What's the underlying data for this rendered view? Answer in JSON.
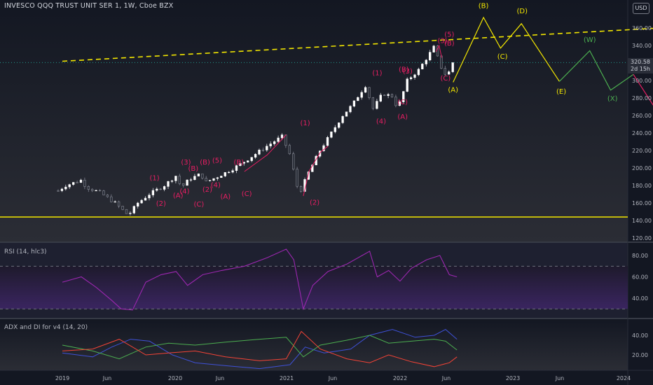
{
  "header": {
    "title": "INVESCO QQQ TRUST UNIT SER 1, 1W, Cboe BZX",
    "currency": "USD"
  },
  "price_tag": {
    "price": "320.58",
    "countdown": "2d 15h"
  },
  "panels": {
    "rsi_title": "RSI (14, hlc3)",
    "adx_title": "ADX and DI for v4 (14, 20)"
  },
  "colors": {
    "background": "#131722",
    "wave_magenta": "#e91e63",
    "wave_yellow": "#f2e600",
    "wave_green": "#4caf50",
    "rsi_line": "#9c27b0",
    "adx_blue": "#3f51d8",
    "adx_green": "#4caf50",
    "adx_red": "#f44336"
  },
  "chart_data": [
    {
      "type": "line",
      "panel": "price",
      "y_axis_ticks": [
        "360.00",
        "340.00",
        "320.00",
        "300.00",
        "280.00",
        "260.00",
        "240.00",
        "220.00",
        "200.00",
        "180.00",
        "160.00",
        "140.00",
        "120.00"
      ],
      "ylim": [
        120,
        370
      ],
      "x_axis_ticks": [
        "2019",
        "Jun",
        "2020",
        "Jun",
        "2021",
        "Jun",
        "2022",
        "Jun",
        "2023",
        "Jun",
        "2024"
      ],
      "price_history": [
        {
          "t": 0,
          "p": 174
        },
        {
          "t": 0.2,
          "p": 180
        },
        {
          "t": 0.6,
          "p": 186
        },
        {
          "t": 0.75,
          "p": 178
        },
        {
          "t": 1.1,
          "p": 172
        },
        {
          "t": 1.5,
          "p": 160
        },
        {
          "t": 1.85,
          "p": 146
        },
        {
          "t": 2.1,
          "p": 160
        },
        {
          "t": 2.4,
          "p": 170
        },
        {
          "t": 2.8,
          "p": 180
        },
        {
          "t": 3.1,
          "p": 191
        },
        {
          "t": 3.25,
          "p": 178
        },
        {
          "t": 3.45,
          "p": 187
        },
        {
          "t": 3.75,
          "p": 193
        },
        {
          "t": 3.9,
          "p": 184
        },
        {
          "t": 4.2,
          "p": 190
        },
        {
          "t": 4.6,
          "p": 199
        },
        {
          "t": 5.0,
          "p": 210
        },
        {
          "t": 5.5,
          "p": 225
        },
        {
          "t": 5.9,
          "p": 236
        },
        {
          "t": 6.1,
          "p": 216
        },
        {
          "t": 6.35,
          "p": 170
        },
        {
          "t": 6.6,
          "p": 195
        },
        {
          "t": 6.9,
          "p": 220
        },
        {
          "t": 7.2,
          "p": 240
        },
        {
          "t": 7.5,
          "p": 260
        },
        {
          "t": 7.75,
          "p": 272
        },
        {
          "t": 7.95,
          "p": 285
        },
        {
          "t": 8.1,
          "p": 294
        },
        {
          "t": 8.3,
          "p": 268
        },
        {
          "t": 8.55,
          "p": 285
        },
        {
          "t": 8.8,
          "p": 282
        },
        {
          "t": 8.95,
          "p": 268
        },
        {
          "t": 9.2,
          "p": 300
        },
        {
          "t": 9.5,
          "p": 312
        },
        {
          "t": 9.75,
          "p": 328
        },
        {
          "t": 9.9,
          "p": 338
        },
        {
          "t": 10.1,
          "p": 315
        },
        {
          "t": 10.25,
          "p": 304
        },
        {
          "t": 10.4,
          "p": 320.58
        }
      ],
      "projection_yellow": [
        {
          "t": 10.3,
          "p": 298
        },
        {
          "t": 11.1,
          "p": 372
        },
        {
          "t": 11.55,
          "p": 337
        },
        {
          "t": 12.1,
          "p": 365
        },
        {
          "t": 13.1,
          "p": 299
        }
      ],
      "projection_green": [
        {
          "t": 13.1,
          "p": 299
        },
        {
          "t": 13.9,
          "p": 334
        },
        {
          "t": 14.45,
          "p": 289
        },
        {
          "t": 15.05,
          "p": 307
        }
      ],
      "projection_magenta": [
        {
          "t": 15.05,
          "p": 307
        },
        {
          "t": 16.55,
          "p": 206
        },
        {
          "t": 17.5,
          "p": 252
        },
        {
          "t": 18.45,
          "p": 145
        },
        {
          "t": 19.25,
          "p": 195
        },
        {
          "t": 20.1,
          "p": 149
        }
      ],
      "trendline_yellow_dashed": [
        {
          "t": 0,
          "p": 322
        },
        {
          "t": 17.4,
          "p": 364
        }
      ],
      "support_line": {
        "p": 144
      },
      "annotations": [
        {
          "text": "(B)",
          "t": 11.1,
          "p": 383,
          "color": "yellow"
        },
        {
          "text": "(D)",
          "t": 12.12,
          "p": 377,
          "color": "yellow"
        },
        {
          "text": "(C)",
          "t": 11.6,
          "p": 325,
          "color": "yellow"
        },
        {
          "text": "(E)",
          "t": 13.15,
          "p": 285,
          "color": "yellow"
        },
        {
          "text": "(A)",
          "t": 10.3,
          "p": 287,
          "color": "yellow"
        },
        {
          "text": "(W)",
          "t": 13.9,
          "p": 344,
          "color": "green"
        },
        {
          "text": "(Y)",
          "t": 15.1,
          "p": 318,
          "color": "green"
        },
        {
          "text": "(X)",
          "t": 14.5,
          "p": 277,
          "color": "green"
        },
        {
          "text": "(2)",
          "t": 17.5,
          "p": 262,
          "color": "magenta"
        },
        {
          "text": "(1)",
          "t": 16.6,
          "p": 195,
          "color": "magenta"
        },
        {
          "text": "(4)",
          "t": 19.25,
          "p": 205,
          "color": "magenta"
        },
        {
          "text": "(3)",
          "t": 18.45,
          "p": 133,
          "color": "magenta"
        },
        {
          "text": "(5)",
          "t": 20.1,
          "p": 135,
          "color": "magenta"
        },
        {
          "text": "(1)",
          "t": 6.4,
          "p": 249,
          "color": "magenta"
        },
        {
          "text": "(2)",
          "t": 6.65,
          "p": 158,
          "color": "magenta"
        },
        {
          "text": "(1)",
          "t": 2.43,
          "p": 186,
          "color": "magenta"
        },
        {
          "text": "(2)",
          "t": 2.6,
          "p": 157,
          "color": "magenta"
        },
        {
          "text": "(3)",
          "t": 3.26,
          "p": 204,
          "color": "magenta"
        },
        {
          "text": "(B)",
          "t": 3.45,
          "p": 197,
          "color": "magenta"
        },
        {
          "text": "(4)",
          "t": 3.22,
          "p": 171,
          "color": "magenta"
        },
        {
          "text": "(A)",
          "t": 3.05,
          "p": 166,
          "color": "magenta"
        },
        {
          "text": "(C)",
          "t": 3.6,
          "p": 156,
          "color": "magenta"
        },
        {
          "text": "(B)",
          "t": 3.76,
          "p": 204,
          "color": "magenta"
        },
        {
          "text": "(5)",
          "t": 4.08,
          "p": 206,
          "color": "magenta"
        },
        {
          "text": "(2)",
          "t": 3.82,
          "p": 173,
          "color": "magenta"
        },
        {
          "text": "(4)",
          "t": 4.04,
          "p": 178,
          "color": "magenta"
        },
        {
          "text": "(A)",
          "t": 4.3,
          "p": 165,
          "color": "magenta"
        },
        {
          "text": "(B)",
          "t": 4.65,
          "p": 204,
          "color": "magenta"
        },
        {
          "text": "(C)",
          "t": 4.86,
          "p": 168,
          "color": "magenta"
        },
        {
          "text": "(1)",
          "t": 8.3,
          "p": 306,
          "color": "magenta"
        },
        {
          "text": "(4)",
          "t": 8.4,
          "p": 251,
          "color": "magenta"
        },
        {
          "text": "(A)",
          "t": 8.97,
          "p": 256,
          "color": "magenta"
        },
        {
          "text": "(B)",
          "t": 9.0,
          "p": 310,
          "color": "magenta"
        },
        {
          "text": "(C)",
          "t": 8.97,
          "p": 273,
          "color": "magenta"
        },
        {
          "text": "(3)",
          "t": 9.1,
          "p": 308,
          "color": "magenta"
        },
        {
          "text": "(B)",
          "t": 10.2,
          "p": 340,
          "color": "magenta"
        },
        {
          "text": "(3)",
          "t": 10.02,
          "p": 343,
          "color": "magenta"
        },
        {
          "text": "(C)",
          "t": 10.1,
          "p": 300,
          "color": "magenta"
        },
        {
          "text": "(5)",
          "t": 10.2,
          "p": 350,
          "color": "magenta"
        }
      ]
    },
    {
      "type": "line",
      "panel": "rsi",
      "title": "RSI (14, hlc3)",
      "y_axis_ticks": [
        "80.00",
        "60.00",
        "40.00"
      ],
      "ylim": [
        25,
        93
      ],
      "bands": [
        70,
        30
      ],
      "series": [
        {
          "values": [
            {
              "t": 0,
              "v": 55
            },
            {
              "t": 0.5,
              "v": 60
            },
            {
              "t": 0.9,
              "v": 50
            },
            {
              "t": 1.3,
              "v": 38
            },
            {
              "t": 1.55,
              "v": 30
            },
            {
              "t": 1.85,
              "v": 29
            },
            {
              "t": 2.2,
              "v": 55
            },
            {
              "t": 2.6,
              "v": 62
            },
            {
              "t": 3.0,
              "v": 65
            },
            {
              "t": 3.3,
              "v": 52
            },
            {
              "t": 3.7,
              "v": 62
            },
            {
              "t": 4.2,
              "v": 66
            },
            {
              "t": 4.8,
              "v": 70
            },
            {
              "t": 5.4,
              "v": 78
            },
            {
              "t": 5.9,
              "v": 86
            },
            {
              "t": 6.1,
              "v": 76
            },
            {
              "t": 6.35,
              "v": 30
            },
            {
              "t": 6.6,
              "v": 52
            },
            {
              "t": 7.0,
              "v": 65
            },
            {
              "t": 7.5,
              "v": 72
            },
            {
              "t": 7.9,
              "v": 80
            },
            {
              "t": 8.1,
              "v": 84
            },
            {
              "t": 8.3,
              "v": 60
            },
            {
              "t": 8.6,
              "v": 66
            },
            {
              "t": 8.9,
              "v": 56
            },
            {
              "t": 9.2,
              "v": 68
            },
            {
              "t": 9.6,
              "v": 76
            },
            {
              "t": 9.95,
              "v": 80
            },
            {
              "t": 10.2,
              "v": 62
            },
            {
              "t": 10.4,
              "v": 60
            }
          ]
        }
      ]
    },
    {
      "type": "line",
      "panel": "adx",
      "title": "ADX and DI for v4 (14, 20)",
      "y_axis_ticks": [
        "40.00",
        "20.00"
      ],
      "ylim": [
        3,
        50
      ],
      "series": [
        {
          "color": "blue",
          "values": [
            {
              "t": 0,
              "v": 22
            },
            {
              "t": 0.8,
              "v": 18
            },
            {
              "t": 1.3,
              "v": 28
            },
            {
              "t": 1.8,
              "v": 36
            },
            {
              "t": 2.3,
              "v": 34
            },
            {
              "t": 2.9,
              "v": 20
            },
            {
              "t": 3.5,
              "v": 12
            },
            {
              "t": 4.3,
              "v": 9
            },
            {
              "t": 5.2,
              "v": 6
            },
            {
              "t": 6.0,
              "v": 10
            },
            {
              "t": 6.4,
              "v": 28
            },
            {
              "t": 6.9,
              "v": 22
            },
            {
              "t": 7.6,
              "v": 26
            },
            {
              "t": 8.1,
              "v": 40
            },
            {
              "t": 8.7,
              "v": 46
            },
            {
              "t": 9.3,
              "v": 38
            },
            {
              "t": 9.8,
              "v": 40
            },
            {
              "t": 10.1,
              "v": 46
            },
            {
              "t": 10.4,
              "v": 36
            }
          ]
        },
        {
          "color": "green",
          "values": [
            {
              "t": 0,
              "v": 30
            },
            {
              "t": 0.8,
              "v": 24
            },
            {
              "t": 1.5,
              "v": 16
            },
            {
              "t": 2.2,
              "v": 28
            },
            {
              "t": 2.8,
              "v": 32
            },
            {
              "t": 3.5,
              "v": 30
            },
            {
              "t": 4.3,
              "v": 33
            },
            {
              "t": 5.2,
              "v": 36
            },
            {
              "t": 5.9,
              "v": 38
            },
            {
              "t": 6.35,
              "v": 18
            },
            {
              "t": 6.8,
              "v": 30
            },
            {
              "t": 7.5,
              "v": 35
            },
            {
              "t": 8.1,
              "v": 40
            },
            {
              "t": 8.6,
              "v": 32
            },
            {
              "t": 9.2,
              "v": 34
            },
            {
              "t": 9.8,
              "v": 36
            },
            {
              "t": 10.1,
              "v": 34
            },
            {
              "t": 10.4,
              "v": 25
            }
          ]
        },
        {
          "color": "red",
          "values": [
            {
              "t": 0,
              "v": 24
            },
            {
              "t": 0.8,
              "v": 26
            },
            {
              "t": 1.5,
              "v": 36
            },
            {
              "t": 2.2,
              "v": 20
            },
            {
              "t": 2.8,
              "v": 22
            },
            {
              "t": 3.5,
              "v": 24
            },
            {
              "t": 4.3,
              "v": 18
            },
            {
              "t": 5.2,
              "v": 14
            },
            {
              "t": 5.9,
              "v": 16
            },
            {
              "t": 6.3,
              "v": 44
            },
            {
              "t": 6.8,
              "v": 26
            },
            {
              "t": 7.5,
              "v": 16
            },
            {
              "t": 8.1,
              "v": 12
            },
            {
              "t": 8.6,
              "v": 20
            },
            {
              "t": 9.2,
              "v": 13
            },
            {
              "t": 9.8,
              "v": 8
            },
            {
              "t": 10.2,
              "v": 12
            },
            {
              "t": 10.4,
              "v": 18
            }
          ]
        }
      ]
    }
  ]
}
